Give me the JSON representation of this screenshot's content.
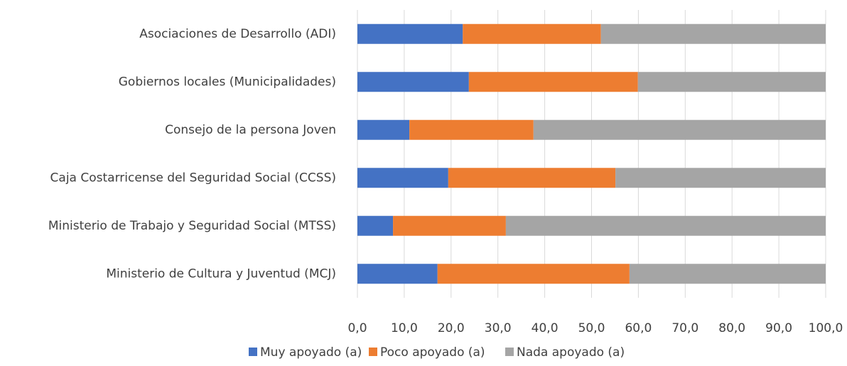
{
  "chart_data": {
    "type": "stacked-bar-horizontal",
    "categories": [
      "Asociaciones de Desarrollo (ADI)",
      "Gobiernos locales (Municipalidades)",
      "Consejo de la persona Joven",
      "Caja Costarricense del Seguridad Social (CCSS)",
      "Ministerio de Trabajo y Seguridad Social (MTSS)",
      "Ministerio de Cultura y Juventud (MCJ)"
    ],
    "series": [
      {
        "name": "Muy apoyado (a)",
        "color": "#4472c4",
        "values": [
          22.5,
          23.8,
          11.1,
          19.4,
          7.6,
          17.1
        ]
      },
      {
        "name": "Poco apoyado (a)",
        "color": "#ed7d31",
        "values": [
          29.5,
          36.1,
          26.5,
          35.7,
          24.1,
          41.0
        ]
      },
      {
        "name": "Nada apoyado (a)",
        "color": "#a5a5a5",
        "values": [
          48.0,
          40.1,
          62.4,
          44.9,
          68.3,
          41.9
        ]
      }
    ],
    "xlim": [
      0,
      100
    ],
    "xticks": [
      {
        "value": 0,
        "label": "0,0"
      },
      {
        "value": 10,
        "label": "10,0"
      },
      {
        "value": 20,
        "label": "20,0"
      },
      {
        "value": 30,
        "label": "30,0"
      },
      {
        "value": 40,
        "label": "40,0"
      },
      {
        "value": 50,
        "label": "50,0"
      },
      {
        "value": 60,
        "label": "60,0"
      },
      {
        "value": 70,
        "label": "70,0"
      },
      {
        "value": 80,
        "label": "80,0"
      },
      {
        "value": 90,
        "label": "90,0"
      },
      {
        "value": 100,
        "label": "100,0"
      }
    ],
    "grid": true,
    "legend": "bottom"
  }
}
